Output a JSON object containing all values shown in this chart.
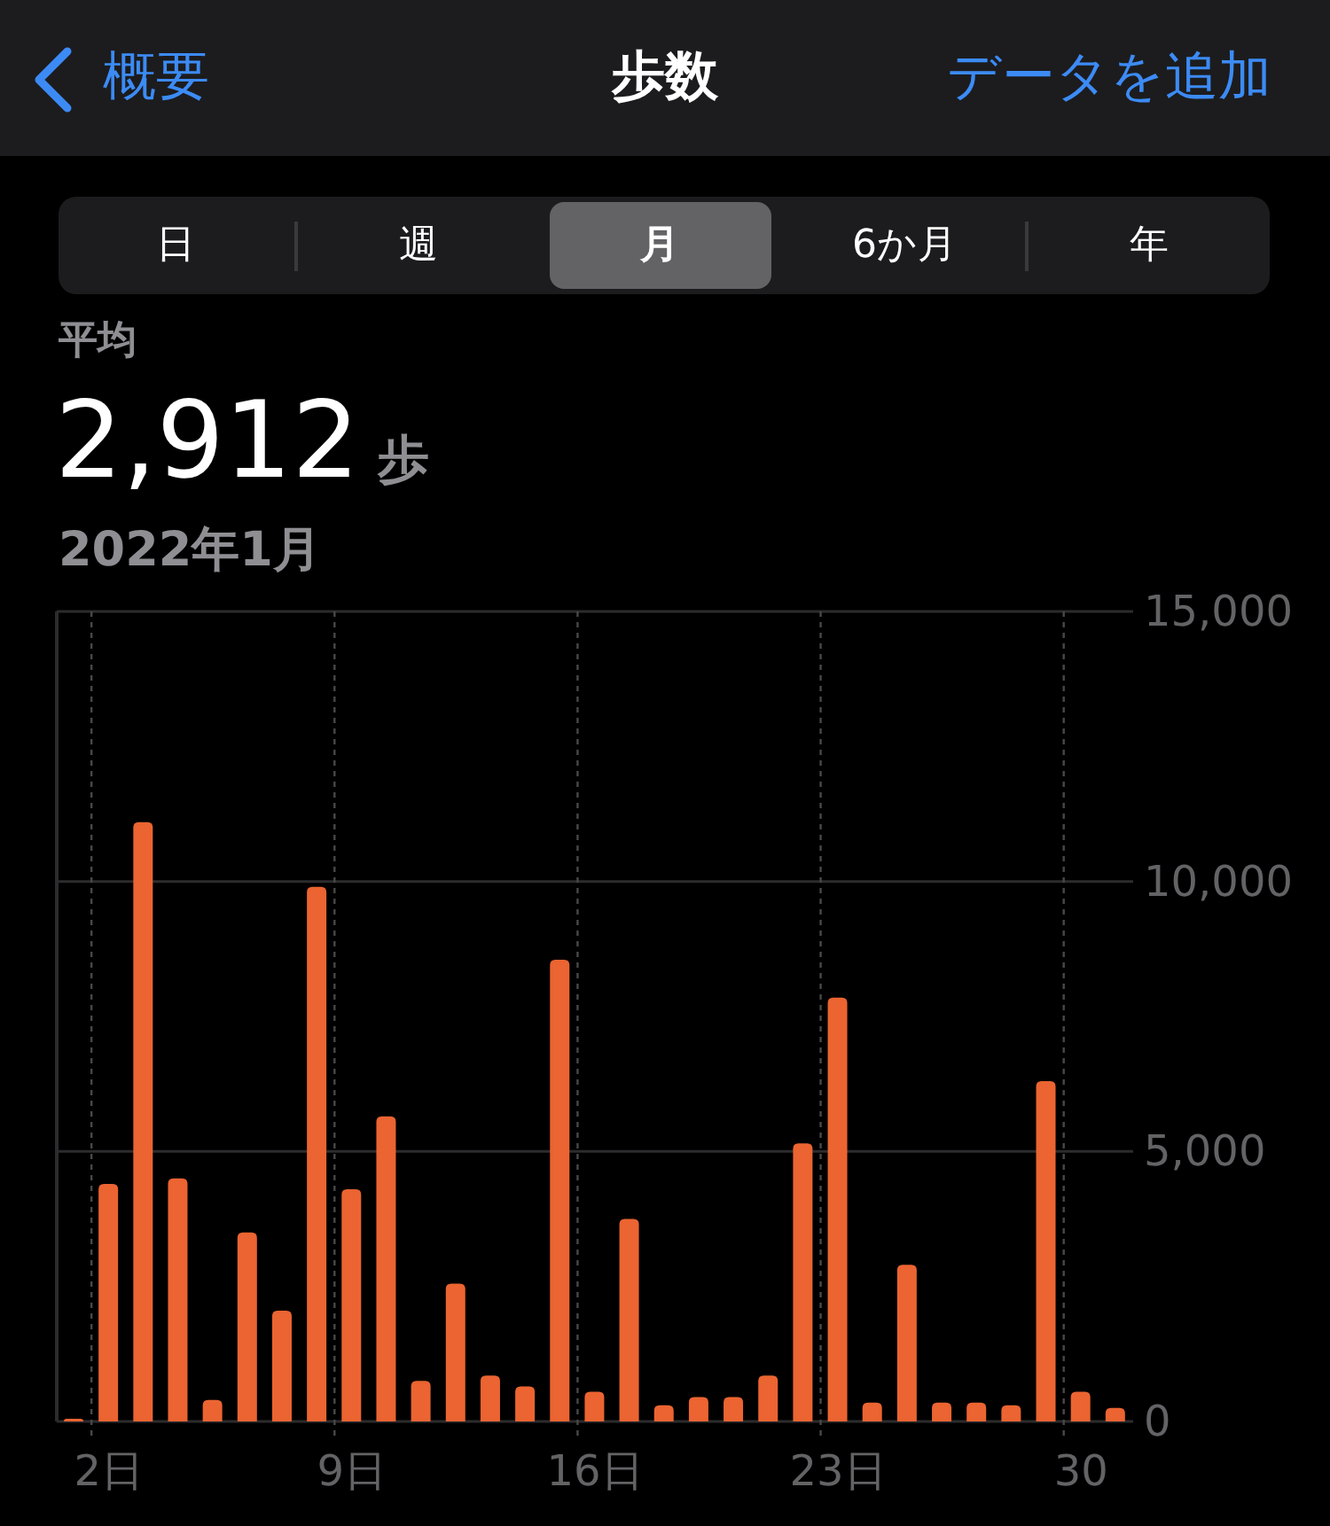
{
  "chart_data": {
    "type": "bar",
    "title": "歩数",
    "subtitle": "2022年1月",
    "annotations": [
      "概要",
      "データを追加",
      "日",
      "週",
      "月",
      "6か月",
      "年",
      "平均",
      "2,912",
      "歩"
    ],
    "categories": [
      null,
      "2日",
      null,
      null,
      null,
      null,
      null,
      null,
      "9日",
      null,
      null,
      null,
      null,
      null,
      null,
      "16日",
      null,
      null,
      null,
      null,
      null,
      null,
      "23日",
      null,
      null,
      null,
      null,
      null,
      null,
      "30",
      null
    ],
    "values": [
      50,
      4400,
      11100,
      4500,
      400,
      3500,
      2050,
      9900,
      4300,
      5650,
      750,
      2550,
      850,
      650,
      8550,
      550,
      3750,
      300,
      450,
      450,
      850,
      5150,
      7850,
      350,
      2900,
      350,
      350,
      300,
      6300,
      550,
      250
    ],
    "color": "#eb6431",
    "ylim": [
      0,
      15000
    ],
    "yticks": [
      0,
      {
        "value": 5000,
        "label": "5,000"
      },
      {
        "value": 10000,
        "label": "10,000"
      },
      {
        "value": 15000,
        "label": "15,000"
      }
    ],
    "grid": true
  }
}
